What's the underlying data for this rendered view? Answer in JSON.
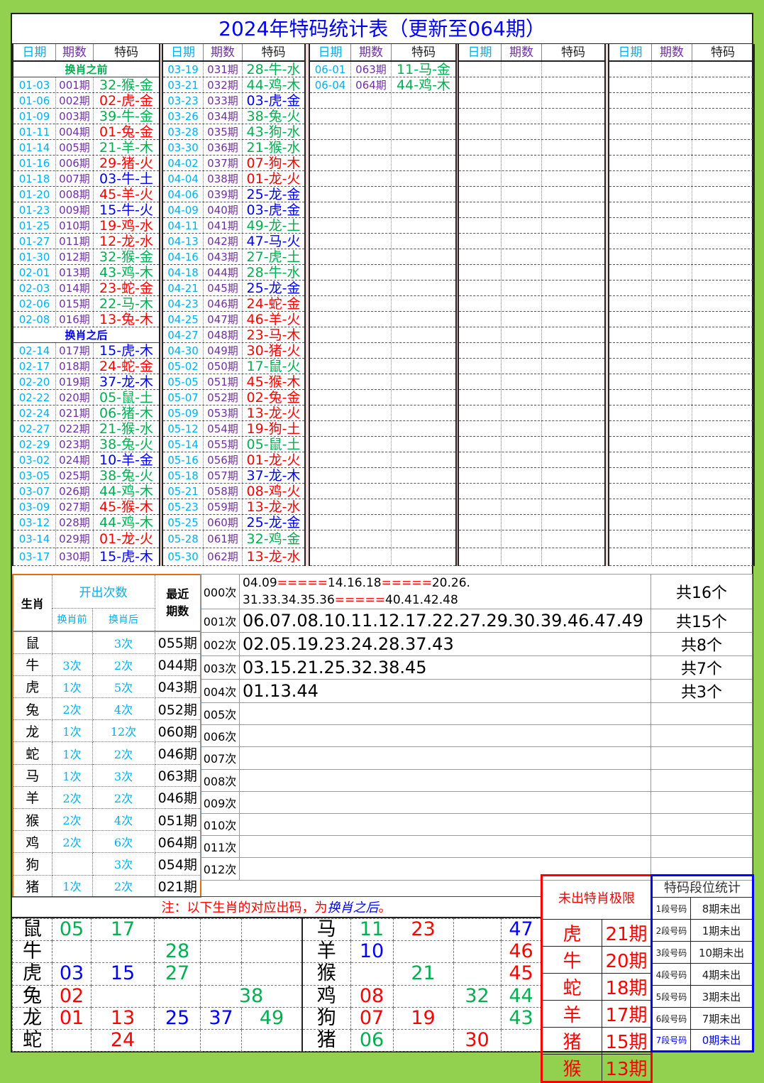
{
  "title": "2024年特码统计表（更新至064期）",
  "colors": {
    "g": "#00b050",
    "r": "#ff0000",
    "b": "#0000ff",
    "date": "#00b0f0",
    "period": "#7030a0",
    "orange": "#e46c0a",
    "bg": "#92d050"
  },
  "headers": {
    "date": "日期",
    "period": "期数",
    "code": "特码"
  },
  "blocks": [
    [
      [
        "sec",
        "换肖之前",
        "g"
      ],
      [
        "01-03",
        "001期",
        "32-猴-金",
        "g"
      ],
      [
        "01-06",
        "002期",
        "02-虎-金",
        "r"
      ],
      [
        "01-09",
        "003期",
        "39-牛-金",
        "g"
      ],
      [
        "01-11",
        "004期",
        "01-兔-金",
        "r"
      ],
      [
        "01-14",
        "005期",
        "21-羊-木",
        "g"
      ],
      [
        "01-16",
        "006期",
        "29-猪-火",
        "r"
      ],
      [
        "01-18",
        "007期",
        "03-牛-土",
        "b"
      ],
      [
        "01-20",
        "008期",
        "45-羊-火",
        "r"
      ],
      [
        "01-23",
        "009期",
        "15-牛-火",
        "b"
      ],
      [
        "01-25",
        "010期",
        "19-鸡-水",
        "r"
      ],
      [
        "01-27",
        "011期",
        "12-龙-水",
        "r"
      ],
      [
        "01-30",
        "012期",
        "32-猴-金",
        "g"
      ],
      [
        "02-01",
        "013期",
        "43-鸡-木",
        "g"
      ],
      [
        "02-03",
        "014期",
        "23-蛇-金",
        "r"
      ],
      [
        "02-06",
        "015期",
        "22-马-木",
        "g"
      ],
      [
        "02-08",
        "016期",
        "13-兔-木",
        "r"
      ],
      [
        "sec",
        "换肖之后",
        "b"
      ],
      [
        "02-14",
        "017期",
        "15-虎-木",
        "b"
      ],
      [
        "02-17",
        "018期",
        "24-蛇-金",
        "r"
      ],
      [
        "02-20",
        "019期",
        "37-龙-木",
        "b"
      ],
      [
        "02-22",
        "020期",
        "05-鼠-土",
        "g"
      ],
      [
        "02-24",
        "021期",
        "06-猪-木",
        "g"
      ],
      [
        "02-27",
        "022期",
        "21-猴-水",
        "g"
      ],
      [
        "02-29",
        "023期",
        "38-兔-火",
        "g"
      ],
      [
        "03-02",
        "024期",
        "10-羊-金",
        "b"
      ],
      [
        "03-05",
        "025期",
        "38-兔-火",
        "g"
      ],
      [
        "03-07",
        "026期",
        "44-鸡-木",
        "g"
      ],
      [
        "03-09",
        "027期",
        "45-猴-木",
        "r"
      ],
      [
        "03-12",
        "028期",
        "44-鸡-木",
        "g"
      ],
      [
        "03-14",
        "029期",
        "01-龙-火",
        "r"
      ],
      [
        "03-17",
        "030期",
        "15-虎-木",
        "b"
      ]
    ],
    [
      [
        "03-19",
        "031期",
        "28-牛-水",
        "g"
      ],
      [
        "03-21",
        "032期",
        "44-鸡-木",
        "g"
      ],
      [
        "03-23",
        "033期",
        "03-虎-金",
        "b"
      ],
      [
        "03-26",
        "034期",
        "38-兔-火",
        "g"
      ],
      [
        "03-28",
        "035期",
        "43-狗-水",
        "g"
      ],
      [
        "03-30",
        "036期",
        "21-猴-水",
        "g"
      ],
      [
        "04-02",
        "037期",
        "07-狗-木",
        "r"
      ],
      [
        "04-04",
        "038期",
        "01-龙-火",
        "r"
      ],
      [
        "04-06",
        "039期",
        "25-龙-金",
        "b"
      ],
      [
        "04-09",
        "040期",
        "03-虎-金",
        "b"
      ],
      [
        "04-11",
        "041期",
        "49-龙-土",
        "g"
      ],
      [
        "04-13",
        "042期",
        "47-马-火",
        "b"
      ],
      [
        "04-16",
        "043期",
        "27-虎-土",
        "g"
      ],
      [
        "04-18",
        "044期",
        "28-牛-水",
        "g"
      ],
      [
        "04-21",
        "045期",
        "25-龙-金",
        "b"
      ],
      [
        "04-23",
        "046期",
        "24-蛇-金",
        "r"
      ],
      [
        "04-25",
        "047期",
        "46-羊-火",
        "r"
      ],
      [
        "04-27",
        "048期",
        "23-马-木",
        "r"
      ],
      [
        "04-30",
        "049期",
        "30-猪-火",
        "r"
      ],
      [
        "05-02",
        "050期",
        "17-鼠-火",
        "g"
      ],
      [
        "05-05",
        "051期",
        "45-猴-木",
        "r"
      ],
      [
        "05-07",
        "052期",
        "02-兔-金",
        "r"
      ],
      [
        "05-09",
        "053期",
        "13-龙-火",
        "r"
      ],
      [
        "05-12",
        "054期",
        "19-狗-土",
        "r"
      ],
      [
        "05-14",
        "055期",
        "05-鼠-土",
        "g"
      ],
      [
        "05-16",
        "056期",
        "01-龙-火",
        "r"
      ],
      [
        "05-18",
        "057期",
        "37-龙-木",
        "b"
      ],
      [
        "05-21",
        "058期",
        "08-鸡-火",
        "r"
      ],
      [
        "05-23",
        "059期",
        "13-龙-水",
        "r"
      ],
      [
        "05-25",
        "060期",
        "25-龙-金",
        "b"
      ],
      [
        "05-28",
        "061期",
        "32-鸡-金",
        "g"
      ],
      [
        "05-30",
        "062期",
        "13-龙-水",
        "r"
      ]
    ],
    [
      [
        "06-01",
        "063期",
        "11-马-金",
        "g"
      ],
      [
        "06-04",
        "064期",
        "44-鸡-木",
        "g"
      ]
    ],
    [],
    []
  ],
  "zodiac_stats": {
    "h_zodiac": "生肖",
    "h_count": "开出次数",
    "h_before": "换肖前",
    "h_after": "换肖后",
    "h_latest": "最近期数",
    "rows": [
      [
        "鼠",
        "",
        "3次",
        "055期"
      ],
      [
        "牛",
        "3次",
        "2次",
        "044期"
      ],
      [
        "虎",
        "1次",
        "5次",
        "043期"
      ],
      [
        "兔",
        "2次",
        "4次",
        "052期"
      ],
      [
        "龙",
        "1次",
        "12次",
        "060期"
      ],
      [
        "蛇",
        "1次",
        "2次",
        "046期"
      ],
      [
        "马",
        "1次",
        "3次",
        "063期"
      ],
      [
        "羊",
        "2次",
        "2次",
        "046期"
      ],
      [
        "猴",
        "2次",
        "4次",
        "051期"
      ],
      [
        "鸡",
        "2次",
        "6次",
        "064期"
      ],
      [
        "狗",
        "",
        "3次",
        "054期"
      ],
      [
        "猪",
        "1次",
        "2次",
        "021期"
      ]
    ]
  },
  "frequency": [
    {
      "label": "000次",
      "lines": [
        "04.09=====14.16.18=====20.26.",
        "31.33.34.35.36=====40.41.42.48"
      ],
      "count": "共16个"
    },
    {
      "label": "001次",
      "lines": [
        "06.07.08.10.11.12.17.22.27.29.30.39.46.47.49"
      ],
      "count": "共15个"
    },
    {
      "label": "002次",
      "lines": [
        "02.05.19.23.24.28.37.43"
      ],
      "count": "共8个"
    },
    {
      "label": "003次",
      "lines": [
        "03.15.21.25.32.38.45"
      ],
      "count": "共7个"
    },
    {
      "label": "004次",
      "lines": [
        "01.13.44"
      ],
      "count": "共3个"
    },
    {
      "label": "005次",
      "lines": [],
      "count": ""
    },
    {
      "label": "006次",
      "lines": [],
      "count": ""
    },
    {
      "label": "007次",
      "lines": [],
      "count": ""
    },
    {
      "label": "008次",
      "lines": [],
      "count": ""
    },
    {
      "label": "009次",
      "lines": [],
      "count": ""
    },
    {
      "label": "010次",
      "lines": [],
      "count": ""
    },
    {
      "label": "011次",
      "lines": [],
      "count": ""
    },
    {
      "label": "012次",
      "lines": [],
      "count": ""
    }
  ],
  "note": {
    "prefix": "注：以下生肖的对应出码，为",
    "emph": "换肖之后",
    "suffix": "。"
  },
  "zodiac_numbers_left": [
    [
      "鼠",
      [
        "05",
        "g"
      ],
      [
        "17",
        "g"
      ],
      null,
      null,
      null
    ],
    [
      "牛",
      null,
      null,
      [
        "28",
        "g"
      ],
      null,
      null
    ],
    [
      "虎",
      [
        "03",
        "b"
      ],
      [
        "15",
        "b"
      ],
      [
        "27",
        "g"
      ],
      null,
      null
    ],
    [
      "兔",
      [
        "02",
        "r"
      ],
      null,
      null,
      "merge",
      [
        "38",
        "g"
      ]
    ],
    [
      "龙",
      [
        "01",
        "r"
      ],
      [
        "13",
        "r"
      ],
      [
        "25",
        "b"
      ],
      [
        "37",
        "b"
      ],
      [
        "49",
        "g"
      ]
    ],
    [
      "蛇",
      null,
      [
        "24",
        "r"
      ],
      null,
      null,
      null
    ]
  ],
  "zodiac_numbers_right": [
    [
      "马",
      [
        "11",
        "g"
      ],
      [
        "23",
        "r"
      ],
      null,
      [
        "47",
        "b"
      ]
    ],
    [
      "羊",
      [
        "10",
        "b"
      ],
      null,
      null,
      [
        "46",
        "r"
      ]
    ],
    [
      "猴",
      null,
      [
        "21",
        "g"
      ],
      null,
      [
        "45",
        "r"
      ]
    ],
    [
      "鸡",
      [
        "08",
        "r"
      ],
      null,
      [
        "32",
        "g"
      ],
      [
        "44",
        "g"
      ]
    ],
    [
      "狗",
      [
        "07",
        "r"
      ],
      [
        "19",
        "r"
      ],
      null,
      [
        "43",
        "g"
      ]
    ],
    [
      "猪",
      [
        "06",
        "g"
      ],
      null,
      [
        "30",
        "r"
      ],
      null
    ]
  ],
  "limit": {
    "title": "未出特肖极限",
    "rows": [
      [
        "虎",
        "21期"
      ],
      [
        "牛",
        "20期"
      ],
      [
        "蛇",
        "18期"
      ],
      [
        "羊",
        "17期"
      ],
      [
        "猪",
        "15期"
      ],
      [
        "猴",
        "13期"
      ]
    ]
  },
  "segments": {
    "title": "特码段位统计",
    "rows": [
      [
        "1段号码",
        "8期未出"
      ],
      [
        "2段号码",
        "1期未出"
      ],
      [
        "3段号码",
        "10期未出"
      ],
      [
        "4段号码",
        "4期未出"
      ],
      [
        "5段号码",
        "3期未出"
      ],
      [
        "6段号码",
        "7期未出"
      ],
      [
        "7段号码",
        "0期未出"
      ]
    ]
  }
}
